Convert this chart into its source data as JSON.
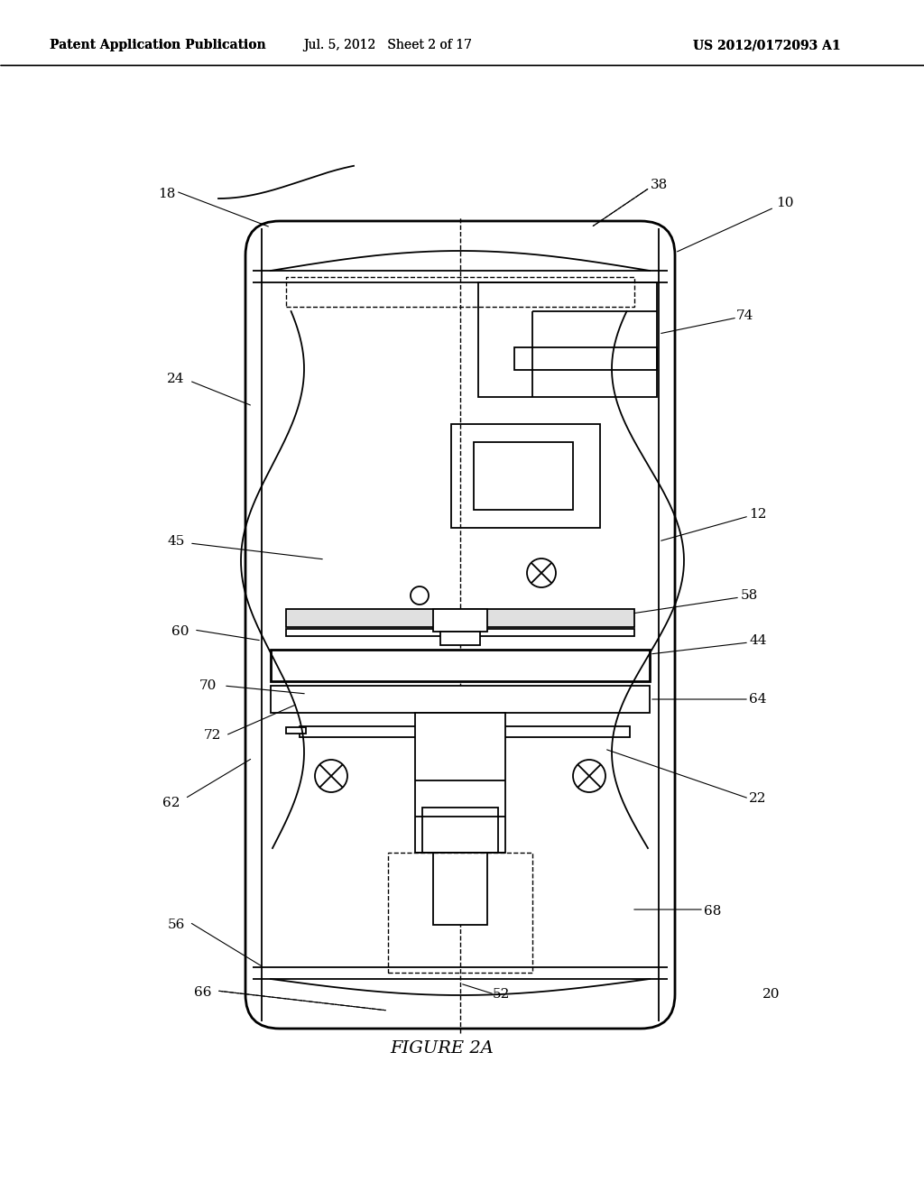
{
  "bg_color": "#ffffff",
  "header_left": "Patent Application Publication",
  "header_mid": "Jul. 5, 2012   Sheet 2 of 17",
  "header_right": "US 2012/0172093 A1",
  "figure_label": "FIGURE 2A"
}
